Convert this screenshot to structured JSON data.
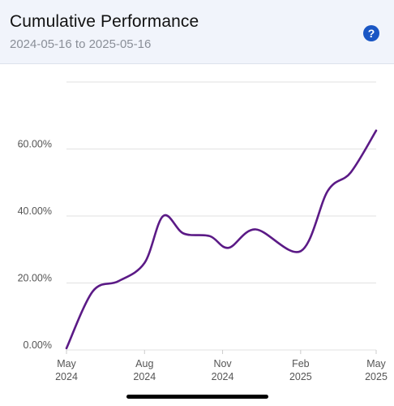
{
  "header": {
    "title": "Cumulative Performance",
    "date_range": "2024-05-16 to 2025-05-16",
    "help_icon": "question-circle-icon",
    "help_label": "?"
  },
  "colors": {
    "line": "#5b1a86",
    "grid": "#e2e2e2",
    "help": "#1a56c4",
    "header_bg": "#f1f4fb"
  },
  "chart_data": {
    "type": "line",
    "title": "Cumulative Performance",
    "subtitle": "2024-05-16 to 2025-05-16",
    "xlabel": "",
    "ylabel": "",
    "ylim": [
      0,
      80
    ],
    "y_unit": "%",
    "yticks": [
      {
        "value": 0,
        "label": "0.00%"
      },
      {
        "value": 20,
        "label": "20.00%"
      },
      {
        "value": 40,
        "label": "40.00%"
      },
      {
        "value": 60,
        "label": "60.00%"
      }
    ],
    "xlim": [
      "2024-05-16",
      "2025-05-16"
    ],
    "xticks": [
      {
        "date": "2024-05-16",
        "label": [
          "May",
          "2024"
        ]
      },
      {
        "date": "2024-08-16",
        "label": [
          "Aug",
          "2024"
        ]
      },
      {
        "date": "2024-11-16",
        "label": [
          "Nov",
          "2024"
        ]
      },
      {
        "date": "2025-02-16",
        "label": [
          "Feb",
          "2025"
        ]
      },
      {
        "date": "2025-05-16",
        "label": [
          "May",
          "2025"
        ]
      }
    ],
    "grid": true,
    "series": [
      {
        "values": [
          {
            "x": "2024-05-16",
            "y": 0.5
          },
          {
            "x": "2024-06-16",
            "y": 17.5
          },
          {
            "x": "2024-07-16",
            "y": 20.5
          },
          {
            "x": "2024-08-16",
            "y": 26
          },
          {
            "x": "2024-09-07",
            "y": 40
          },
          {
            "x": "2024-10-01",
            "y": 34.8
          },
          {
            "x": "2024-11-01",
            "y": 34
          },
          {
            "x": "2024-11-23",
            "y": 30.5
          },
          {
            "x": "2024-12-25",
            "y": 36
          },
          {
            "x": "2025-02-16",
            "y": 29.5
          },
          {
            "x": "2025-03-20",
            "y": 47.5
          },
          {
            "x": "2025-04-16",
            "y": 53
          },
          {
            "x": "2025-05-16",
            "y": 65.5
          }
        ]
      }
    ]
  }
}
